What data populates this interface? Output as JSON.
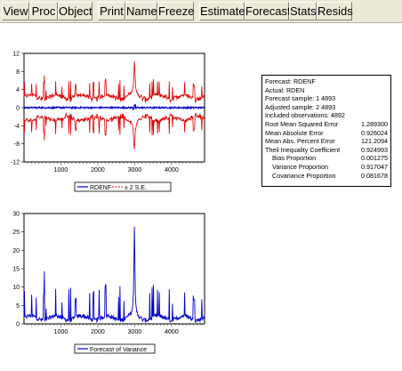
{
  "toolbar": {
    "buttons": [
      {
        "label": "View"
      },
      {
        "label": "Proc"
      },
      {
        "label": "Object"
      },
      {
        "label": "Print"
      },
      {
        "label": "Name"
      },
      {
        "label": "Freeze"
      },
      {
        "label": "Estimate"
      },
      {
        "label": "Forecast"
      },
      {
        "label": "Stats"
      },
      {
        "label": "Resids"
      }
    ]
  },
  "stats_box": {
    "header": [
      "Forecast: RDENF",
      "Actual: RDEN",
      "Forecast sample: 1 4893",
      "Adjusted sample: 2 4893",
      "Included observations: 4892"
    ],
    "rows": [
      {
        "label": "Root Mean Squared Error",
        "value": "1.289300"
      },
      {
        "label": "Mean Absolute Error",
        "value": "0.926024"
      },
      {
        "label": "Mean Abs. Percent Error",
        "value": "121.2094"
      },
      {
        "label": "Theil Inequality Coefficient",
        "value": "0.924993"
      },
      {
        "label": "Bias Proportion",
        "value": "0.001275",
        "indent": true
      },
      {
        "label": "Variance Proportion",
        "value": "0.917047",
        "indent": true
      },
      {
        "label": "Covariance Proportion",
        "value": "0.081678",
        "indent": true
      }
    ]
  },
  "chart_data": [
    {
      "type": "line",
      "x_ticks": [
        "1000",
        "2000",
        "3000",
        "4000"
      ],
      "y_ticks": [
        "12",
        "8",
        "4",
        "0",
        "-4",
        "-8",
        "-12"
      ],
      "ylim": [
        -12,
        12
      ],
      "xlim": [
        1,
        4893
      ],
      "series": [
        {
          "name": "RDENF",
          "color": "#0000cc",
          "style": "solid",
          "values": "flat near 0 across observations, slight spikes near 3000"
        },
        {
          "name": "± 2 S.E.",
          "color": "#cc0000",
          "style": "dashed",
          "values": "symmetric bands around 0, ~±2 to ±4, peak ~±11 near obs 3000"
        }
      ],
      "legend": [
        "RDENF",
        "± 2 S.E."
      ],
      "legend_position": "bottom"
    },
    {
      "type": "line",
      "x_ticks": [
        "1000",
        "2000",
        "3000",
        "4000"
      ],
      "y_ticks": [
        "30",
        "25",
        "20",
        "15",
        "10",
        "5",
        "0"
      ],
      "ylim": [
        0,
        30
      ],
      "xlim": [
        1,
        4893
      ],
      "series": [
        {
          "name": "Forecast of Variance",
          "color": "#0000cc",
          "style": "solid",
          "values": "baseline ~1-3 with spikes, peak ~28 near obs 3000"
        }
      ],
      "legend": [
        "Forecast of Variance"
      ],
      "legend_position": "bottom"
    }
  ]
}
